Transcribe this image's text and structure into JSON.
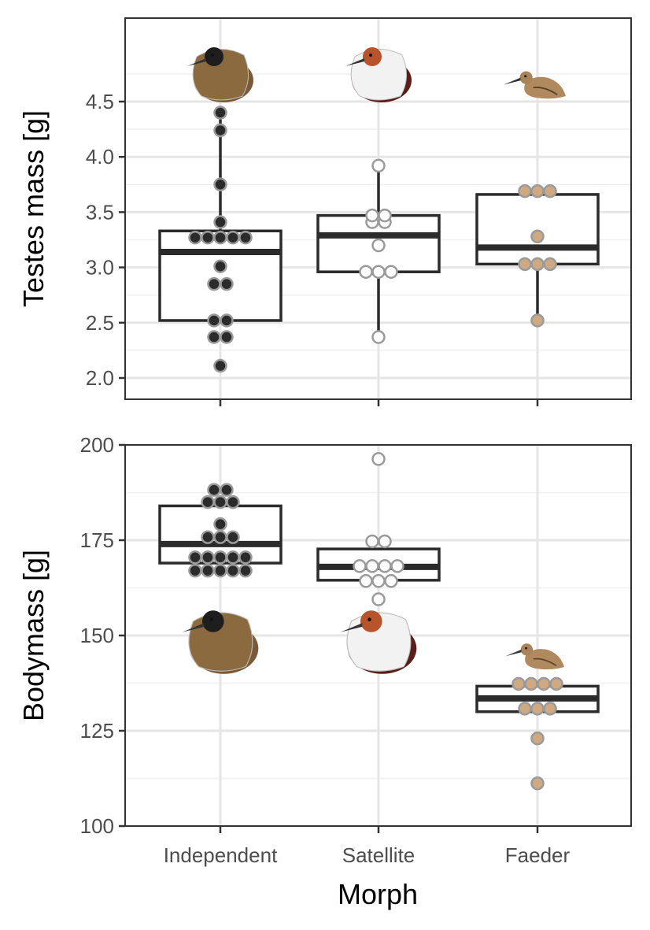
{
  "chart_data": [
    {
      "type": "boxplot",
      "panel": "top",
      "ylabel": "Testes mass [g]",
      "xlabel": "",
      "ylim": [
        1.8,
        5.05
      ],
      "yticks": [
        "2.0",
        "2.5",
        "3.0",
        "3.5",
        "4.0",
        "4.5"
      ],
      "ytick_values": [
        2.0,
        2.5,
        3.0,
        3.5,
        4.0,
        4.5
      ],
      "categories": [
        "Independent",
        "Satellite",
        "Faeder"
      ],
      "grid": true,
      "boxes": [
        {
          "category": "Independent",
          "q1": 2.52,
          "median": 3.14,
          "q3": 3.33,
          "whisker_low": 2.52,
          "whisker_high": 4.4
        },
        {
          "category": "Satellite",
          "q1": 2.96,
          "median": 3.29,
          "q3": 3.47,
          "whisker_low": 2.37,
          "whisker_high": 3.92
        },
        {
          "category": "Faeder",
          "q1": 3.03,
          "median": 3.18,
          "q3": 3.66,
          "whisker_low": 2.52,
          "whisker_high": 3.66
        }
      ],
      "points": [
        {
          "category": "Independent",
          "values": [
            2.11,
            2.37,
            2.37,
            2.52,
            2.52,
            2.85,
            2.85,
            3.01,
            3.27,
            3.27,
            3.27,
            3.27,
            3.27,
            3.41,
            3.75,
            4.24,
            4.4
          ]
        },
        {
          "category": "Satellite",
          "values": [
            2.37,
            2.96,
            2.96,
            2.96,
            3.2,
            3.41,
            3.41,
            3.47,
            3.47,
            3.92
          ]
        },
        {
          "category": "Faeder",
          "values": [
            2.52,
            3.03,
            3.03,
            3.03,
            3.28,
            3.69,
            3.69,
            3.69
          ]
        }
      ]
    },
    {
      "type": "boxplot",
      "panel": "bottom",
      "ylabel": "Bodymass [g]",
      "xlabel": "Morph",
      "ylim": [
        100,
        200
      ],
      "yticks": [
        "100",
        "125",
        "150",
        "175",
        "200"
      ],
      "ytick_values": [
        100,
        125,
        150,
        175,
        200
      ],
      "categories": [
        "Independent",
        "Satellite",
        "Faeder"
      ],
      "grid": true,
      "boxes": [
        {
          "category": "Independent",
          "q1": 169,
          "median": 174,
          "q3": 184,
          "whisker_low": 169,
          "whisker_high": 184
        },
        {
          "category": "Satellite",
          "q1": 164.5,
          "median": 168,
          "q3": 172.7,
          "whisker_low": 164.5,
          "whisker_high": 172.7
        },
        {
          "category": "Faeder",
          "q1": 130,
          "median": 133.5,
          "q3": 136.7,
          "whisker_low": 130,
          "whisker_high": 136.7
        }
      ],
      "points": [
        {
          "category": "Independent",
          "values": [
            167,
            167,
            167,
            167,
            167,
            170.5,
            170.5,
            170.5,
            170.5,
            170.5,
            175.8,
            175.8,
            175.8,
            179.2,
            185,
            185,
            185,
            188.2,
            188.2
          ]
        },
        {
          "category": "Satellite",
          "values": [
            159.5,
            164.3,
            164.3,
            164.3,
            168.2,
            168.2,
            168.2,
            168.2,
            174.7,
            174.7,
            196.3
          ]
        },
        {
          "category": "Faeder",
          "values": [
            111.2,
            123,
            130.8,
            130.8,
            130.8,
            137.3,
            137.3,
            137.3,
            137.3
          ]
        }
      ]
    }
  ],
  "colors": {
    "Independent": "#2b2b2b",
    "Satellite": "#ffffff",
    "Faeder": "#cfa981",
    "point_stroke": "#9a9a9a",
    "box": "#2b2b2b",
    "grid_major": "#e6e6e6",
    "grid_minor": "#f0f0f0",
    "panel_border": "#333333"
  },
  "bird_icons": [
    "independent-ruff-icon",
    "satellite-ruff-icon",
    "faeder-ruff-icon"
  ]
}
